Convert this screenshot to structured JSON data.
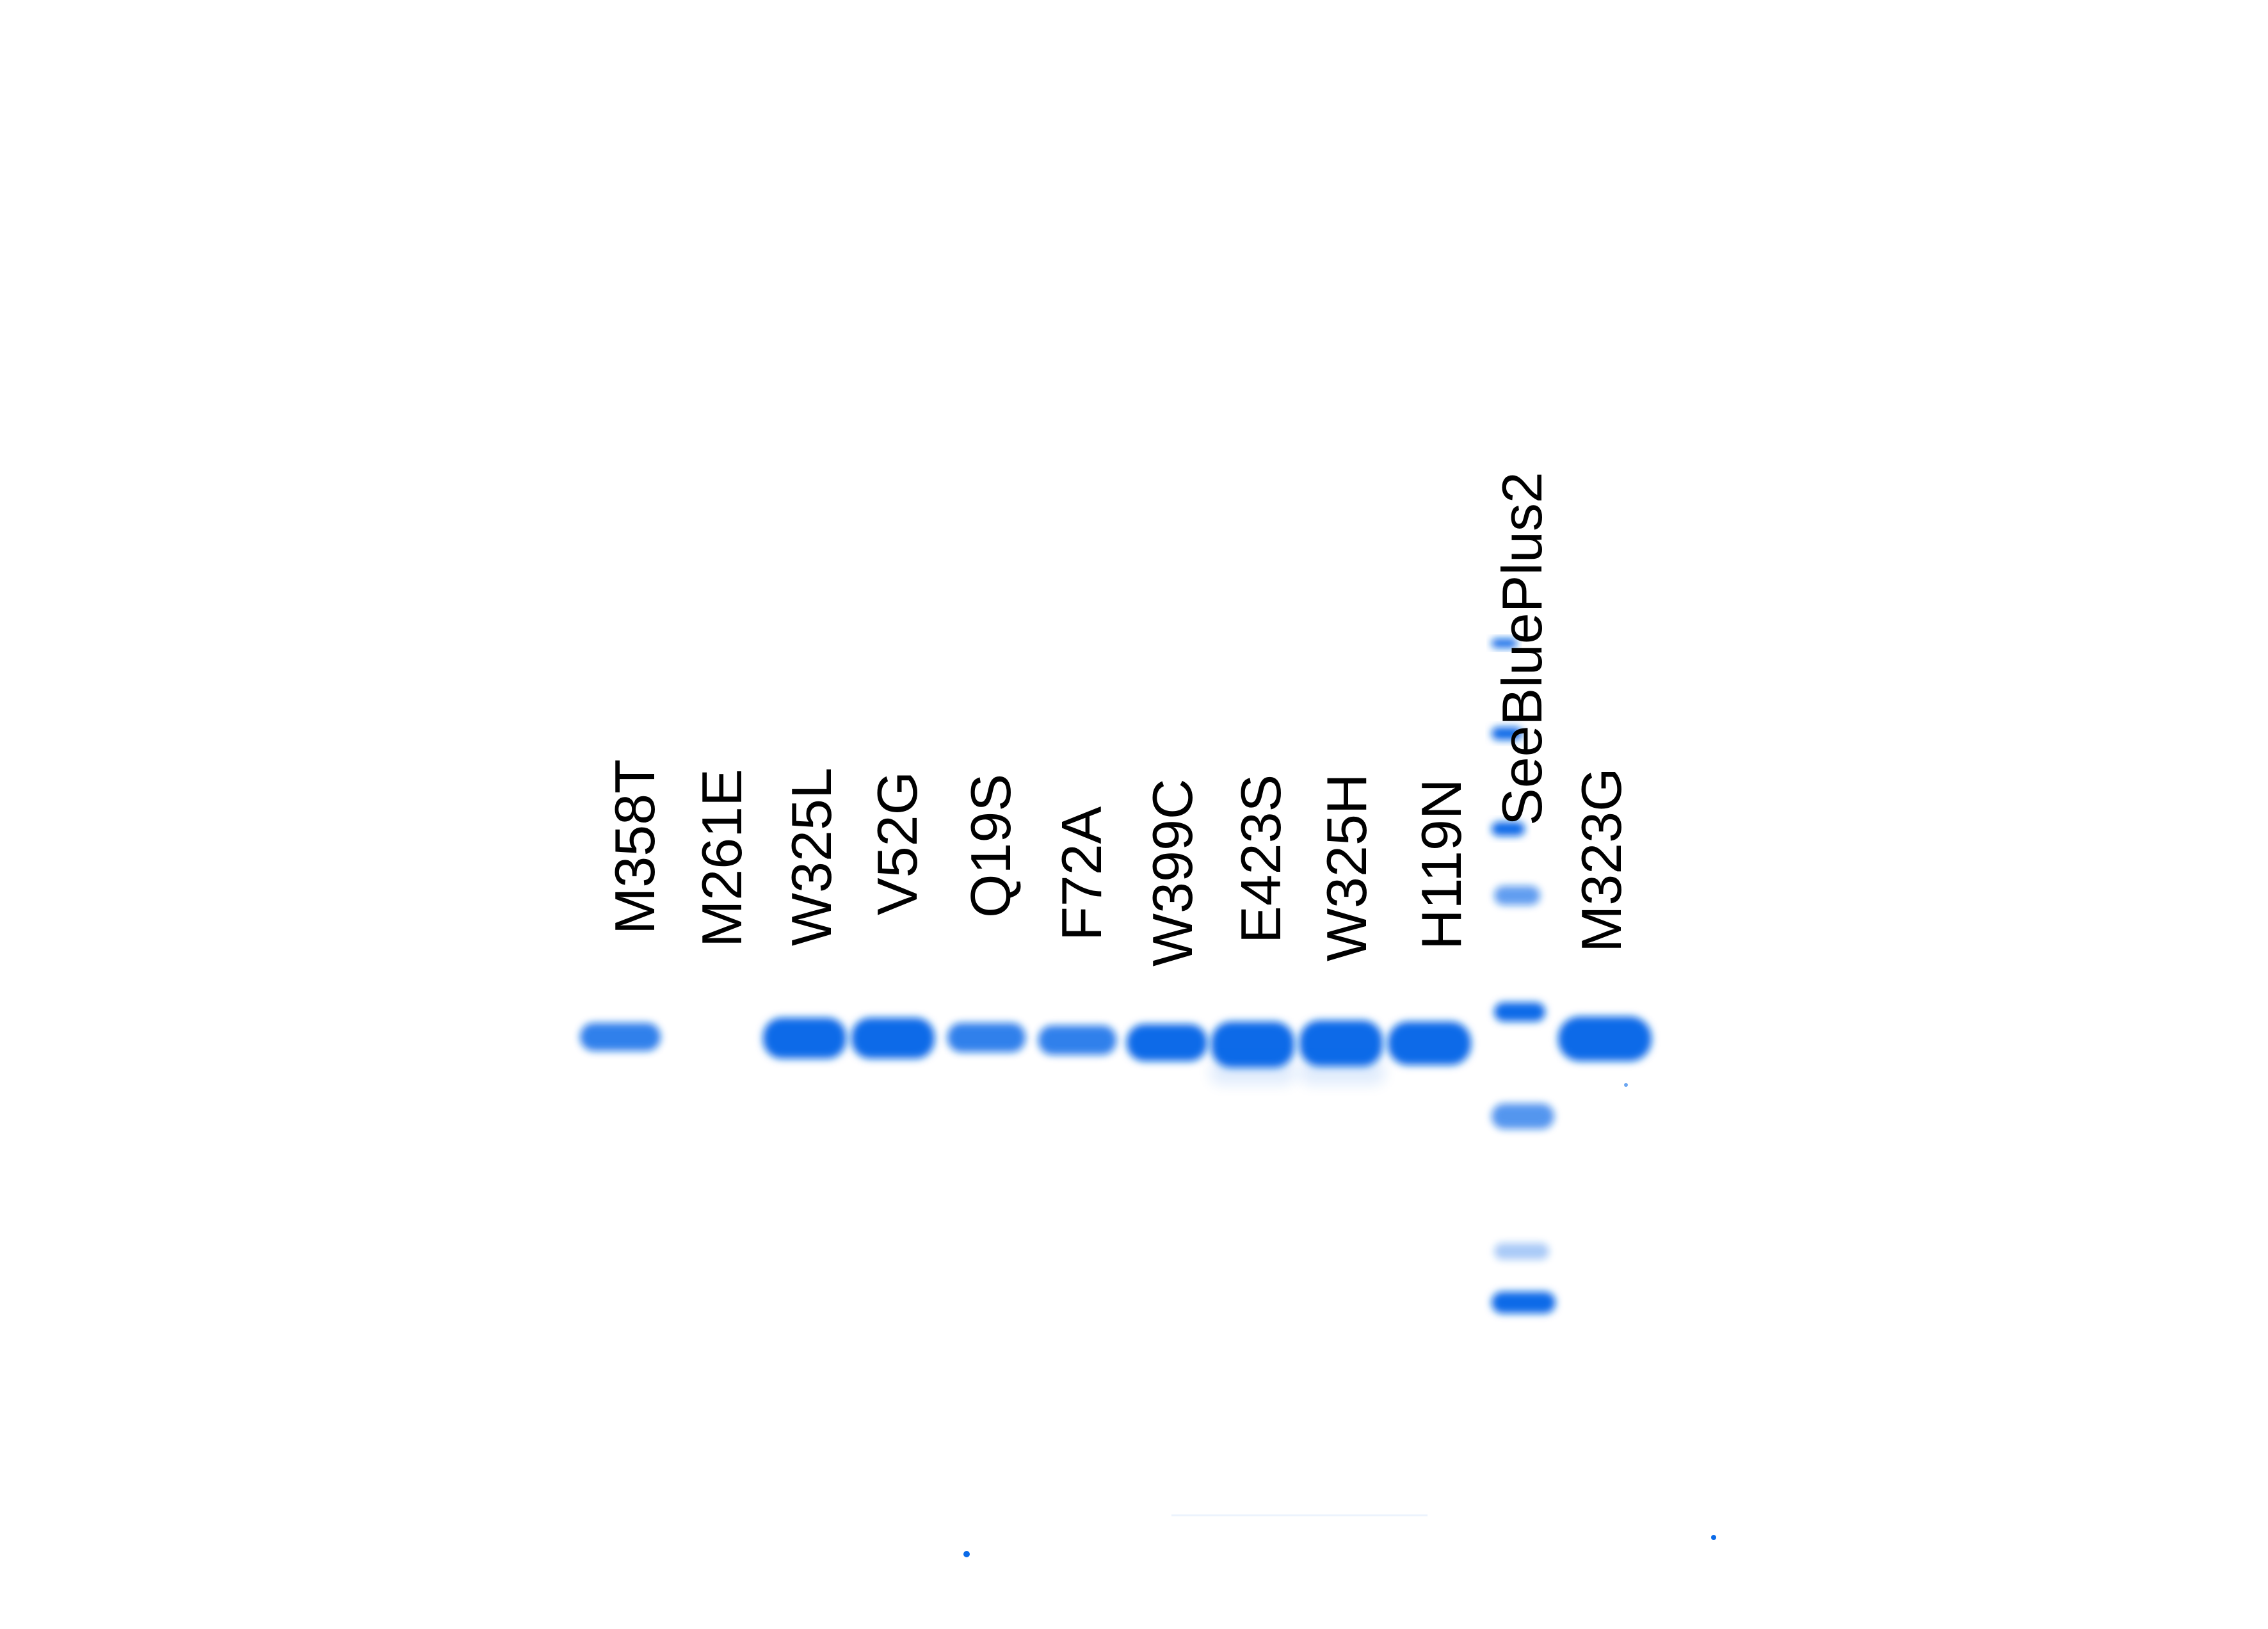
{
  "gel": {
    "stain_color": "#0a6ae8",
    "lanes": [
      {
        "label": "M358T",
        "band": "medium"
      },
      {
        "label": "M261E",
        "band": "none"
      },
      {
        "label": "W325L",
        "band": "strong"
      },
      {
        "label": "V52G",
        "band": "strong"
      },
      {
        "label": "Q19S",
        "band": "medium"
      },
      {
        "label": "F72A",
        "band": "medium"
      },
      {
        "label": "W399C",
        "band": "strong"
      },
      {
        "label": "E423S",
        "band": "strong"
      },
      {
        "label": "W325H",
        "band": "strong"
      },
      {
        "label": "H119N",
        "band": "strong"
      },
      {
        "label": "SeeBluePlus2",
        "band": "ladder"
      },
      {
        "label": "M323G",
        "band": "strong"
      }
    ]
  }
}
